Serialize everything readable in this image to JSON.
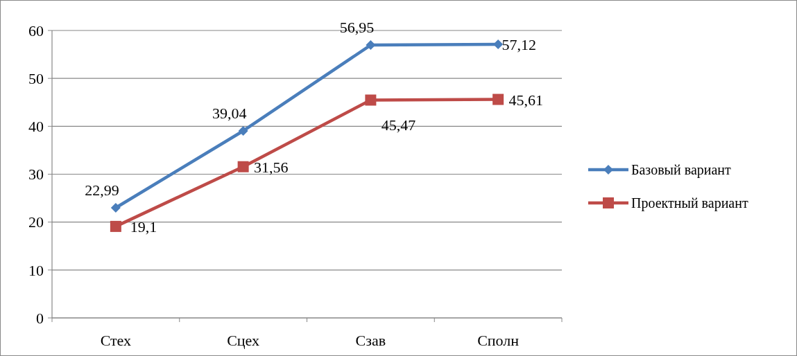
{
  "chart_data": {
    "type": "line",
    "categories": [
      "Стех",
      "Сцех",
      "Сзав",
      "Сполн"
    ],
    "series": [
      {
        "name": "Базовый вариант",
        "color": "#4a7ebb",
        "marker": "diamond",
        "values": [
          22.99,
          39.04,
          56.95,
          57.12
        ],
        "value_labels": [
          "22,99",
          "39,04",
          "56,95",
          "57,12"
        ]
      },
      {
        "name": "Проектный вариант",
        "color": "#be4b48",
        "marker": "square",
        "values": [
          19.1,
          31.56,
          45.47,
          45.61
        ],
        "value_labels": [
          "19,1",
          "31,56",
          "45,47",
          "45,61"
        ]
      }
    ],
    "ylim": [
      0,
      60
    ],
    "yticks": [
      0,
      10,
      20,
      30,
      40,
      50,
      60
    ],
    "grid": "y",
    "legend": "right"
  }
}
